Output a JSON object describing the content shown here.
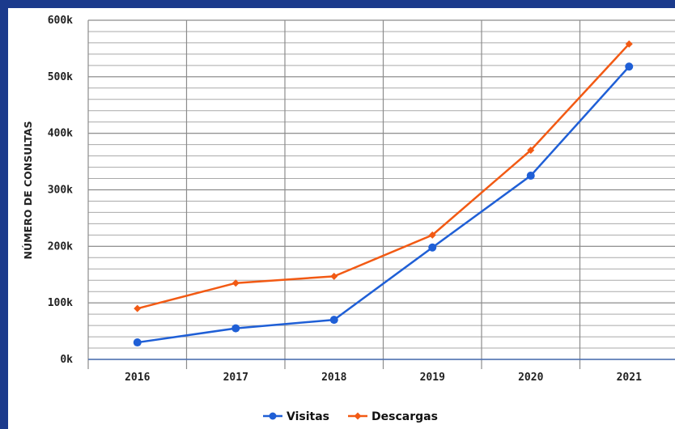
{
  "chart_data": {
    "type": "line",
    "categories": [
      "2016",
      "2017",
      "2018",
      "2019",
      "2020",
      "2021"
    ],
    "ylabel": "NÚMERO DE CONSULTAS",
    "xlabel": "",
    "title": "",
    "ylim": [
      0,
      600000
    ],
    "yticks": [
      0,
      100000,
      200000,
      300000,
      400000,
      500000,
      600000
    ],
    "ytick_labels": [
      "0k",
      "100k",
      "200k",
      "300k",
      "400k",
      "500k",
      "600k"
    ],
    "grid": true,
    "legend_position": "bottom",
    "series": [
      {
        "name": "Visitas",
        "color": "#1f5fd6",
        "marker": "circle",
        "values": [
          30000,
          55000,
          70000,
          198000,
          325000,
          518000
        ]
      },
      {
        "name": "Descargas",
        "color": "#f25a14",
        "marker": "diamond",
        "values": [
          90000,
          135000,
          147000,
          220000,
          370000,
          558000
        ]
      }
    ]
  }
}
